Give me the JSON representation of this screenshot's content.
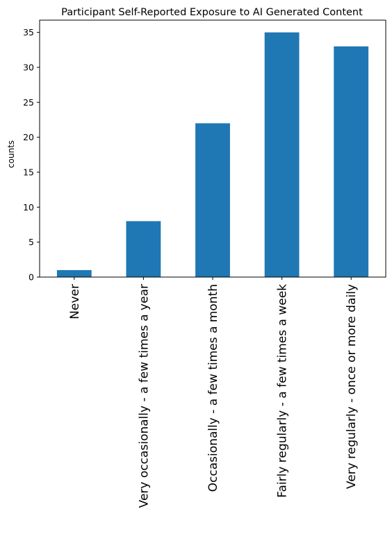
{
  "chart_data": {
    "type": "bar",
    "title": "Participant Self-Reported Exposure to AI Generated Content",
    "xlabel": "",
    "ylabel": "counts",
    "categories": [
      "Never",
      "Very occasionally - a few times a year",
      "Occasionally - a few times a month",
      "Fairly regularly - a few times a week",
      "Very regularly - once or more daily"
    ],
    "values": [
      1,
      8,
      22,
      35,
      33
    ],
    "ylim": [
      0,
      36.75
    ],
    "yticks": [
      0,
      5,
      10,
      15,
      20,
      25,
      30,
      35
    ],
    "grid": false,
    "legend": "none",
    "colors": {
      "bar": "#1f77b4",
      "axis": "#000000"
    }
  }
}
